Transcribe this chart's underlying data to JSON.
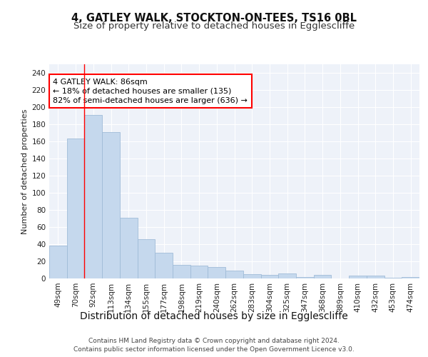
{
  "title_line1": "4, GATLEY WALK, STOCKTON-ON-TEES, TS16 0BL",
  "title_line2": "Size of property relative to detached houses in Egglescliffe",
  "xlabel": "Distribution of detached houses by size in Egglescliffe",
  "ylabel": "Number of detached properties",
  "categories": [
    "49sqm",
    "70sqm",
    "92sqm",
    "113sqm",
    "134sqm",
    "155sqm",
    "177sqm",
    "198sqm",
    "219sqm",
    "240sqm",
    "262sqm",
    "283sqm",
    "304sqm",
    "325sqm",
    "347sqm",
    "368sqm",
    "389sqm",
    "410sqm",
    "432sqm",
    "453sqm",
    "474sqm"
  ],
  "values": [
    38,
    163,
    191,
    171,
    71,
    46,
    30,
    16,
    15,
    13,
    9,
    5,
    4,
    6,
    2,
    4,
    0,
    3,
    3,
    1,
    2
  ],
  "bar_color": "#c5d8ed",
  "bar_edge_color": "#a0bcd8",
  "red_line_index": 2,
  "annotation_text": "4 GATLEY WALK: 86sqm\n← 18% of detached houses are smaller (135)\n82% of semi-detached houses are larger (636) →",
  "annotation_box_color": "white",
  "annotation_box_edge": "red",
  "ylim": [
    0,
    250
  ],
  "yticks": [
    0,
    20,
    40,
    60,
    80,
    100,
    120,
    140,
    160,
    180,
    200,
    220,
    240
  ],
  "footer_line1": "Contains HM Land Registry data © Crown copyright and database right 2024.",
  "footer_line2": "Contains public sector information licensed under the Open Government Licence v3.0.",
  "plot_bg_color": "#eef2f9",
  "grid_color": "#ffffff",
  "title_fontsize": 10.5,
  "subtitle_fontsize": 9.5,
  "xlabel_fontsize": 10,
  "ylabel_fontsize": 8,
  "tick_fontsize": 7.5,
  "footer_fontsize": 6.5,
  "annot_fontsize": 8
}
